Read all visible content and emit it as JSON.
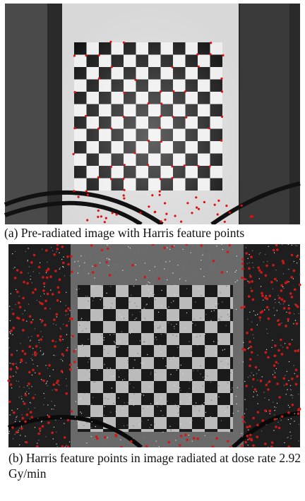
{
  "figure": {
    "subfigures": [
      {
        "caption": "(a) Pre-radiated image with Harris feature points"
      },
      {
        "caption": "(b) Harris feature points in image radiated at dose rate 2.92 Gy/min"
      }
    ]
  }
}
